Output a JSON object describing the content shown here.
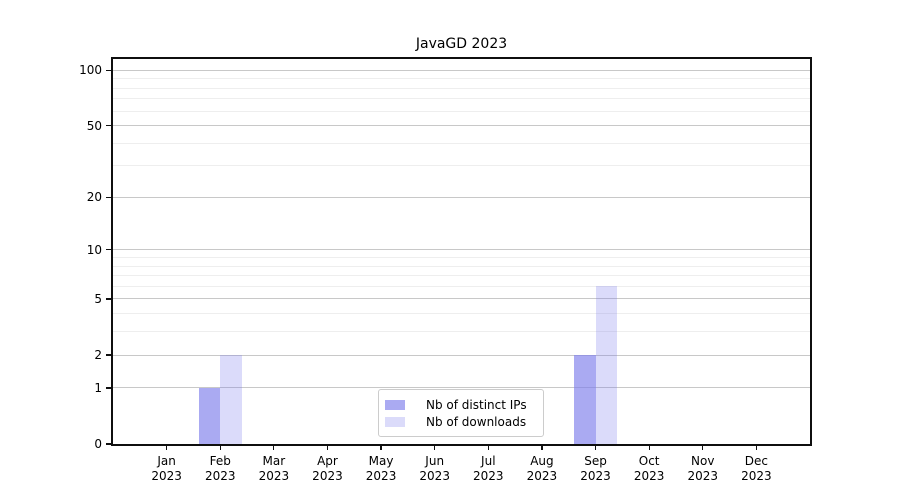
{
  "figure": {
    "background": "#ffffff",
    "axis_color": "#0f0f0f"
  },
  "chart_data": {
    "type": "bar",
    "title": "JavaGD 2023",
    "categories": [
      "Jan",
      "Feb",
      "Mar",
      "Apr",
      "May",
      "Jun",
      "Jul",
      "Aug",
      "Sep",
      "Oct",
      "Nov",
      "Dec"
    ],
    "category_year": "2023",
    "series": [
      {
        "name": "Nb of distinct IPs",
        "color": "rgba(124,124,235,0.65)",
        "values": [
          0,
          1,
          0,
          0,
          0,
          0,
          0,
          0,
          2,
          0,
          0,
          0
        ]
      },
      {
        "name": "Nb of downloads",
        "color": "rgba(110,110,235,0.25)",
        "values": [
          0,
          2,
          0,
          0,
          0,
          0,
          0,
          0,
          6,
          0,
          0,
          0
        ]
      }
    ],
    "y_axis": {
      "scale": "log1p",
      "lim": [
        0,
        115
      ],
      "major_ticks": [
        0,
        1,
        2,
        5,
        10,
        20,
        50,
        100
      ],
      "minor_ticks": [
        3,
        4,
        6,
        7,
        8,
        9,
        30,
        40,
        60,
        70,
        80,
        90
      ]
    },
    "grid": {
      "major_color": "#c8c8c8",
      "minor_color": "#eeeeee"
    },
    "legend": {
      "position": "lower center"
    }
  }
}
